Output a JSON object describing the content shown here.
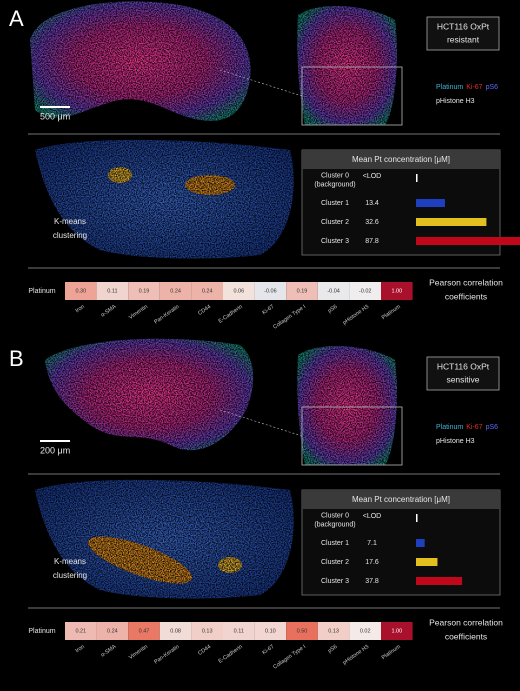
{
  "panels": [
    {
      "letter": "A",
      "scale_bar": "500 μm",
      "sample_box": [
        "HCT116 OxPt",
        "resistant"
      ],
      "legend": [
        {
          "name": "Platinum",
          "color": "#3fb5d8"
        },
        {
          "name": "Ki-67",
          "color": "#e0302a"
        },
        {
          "name": "pS6",
          "color": "#5a6cf5"
        },
        {
          "name": "pHistone H3",
          "color": "#d8c83a"
        }
      ],
      "kmeans_label": [
        "K-means",
        "clustering"
      ],
      "concentration": {
        "title": "Mean Pt concentration [μM]",
        "rows": [
          {
            "cluster": [
              "Cluster 0",
              "(background)"
            ],
            "value_label": "<LOD",
            "color": "#ffffff"
          },
          {
            "cluster": [
              "Cluster 1"
            ],
            "value": 13.4,
            "color": "#1e3fc0"
          },
          {
            "cluster": [
              "Cluster 2"
            ],
            "value": 32.6,
            "color": "#e2c020"
          },
          {
            "cluster": [
              "Cluster 3"
            ],
            "value": 87.8,
            "color": "#c0081a"
          }
        ]
      },
      "correlation": {
        "row_label": "Platinum",
        "caption": [
          "Pearson correlation",
          "coefficients"
        ],
        "columns": [
          "Iron",
          "α-SMA",
          "Vimentin",
          "Pan-Keratin",
          "CD44",
          "E-Cadherin",
          "Ki-67",
          "Collagen Type I",
          "pS6",
          "pHistone H3",
          "Platinum"
        ],
        "values": [
          0.3,
          0.11,
          0.19,
          0.24,
          0.24,
          0.06,
          -0.06,
          0.19,
          -0.04,
          -0.02,
          1
        ],
        "value_labels": [
          "0.30",
          "0.11",
          "0.19",
          "0.24",
          "0.24",
          "0.06",
          "-0.06",
          "0.19",
          "-0.04",
          "-0.02",
          "1.00"
        ]
      }
    },
    {
      "letter": "B",
      "scale_bar": "200 μm",
      "sample_box": [
        "HCT116 OxPt",
        "sensitive"
      ],
      "legend": [
        {
          "name": "Platinum",
          "color": "#3fb5d8"
        },
        {
          "name": "Ki-67",
          "color": "#e0302a"
        },
        {
          "name": "pS6",
          "color": "#5a6cf5"
        },
        {
          "name": "pHistone H3",
          "color": "#d8c83a"
        }
      ],
      "kmeans_label": [
        "K-means",
        "clustering"
      ],
      "concentration": {
        "title": "Mean Pt concentration [μM]",
        "rows": [
          {
            "cluster": [
              "Cluster 0",
              "(background)"
            ],
            "value_label": "<LOD",
            "color": "#ffffff"
          },
          {
            "cluster": [
              "Cluster 1"
            ],
            "value": 7.1,
            "color": "#1e3fc0"
          },
          {
            "cluster": [
              "Cluster 2"
            ],
            "value": 17.6,
            "color": "#e2c020"
          },
          {
            "cluster": [
              "Cluster 3"
            ],
            "value": 37.8,
            "color": "#c0081a"
          }
        ]
      },
      "correlation": {
        "row_label": "Platinum",
        "caption": [
          "Pearson correlation",
          "coefficients"
        ],
        "columns": [
          "Iron",
          "α-SMA",
          "Vimentin",
          "Pan-Keratin",
          "CD44",
          "E-Cadherin",
          "Ki-67",
          "Collagen Type I",
          "pS6",
          "pHistone H3",
          "Platinum"
        ],
        "values": [
          0.21,
          0.24,
          0.47,
          0.08,
          0.13,
          0.11,
          0.1,
          0.5,
          0.13,
          0.02,
          1
        ],
        "value_labels": [
          "0.21",
          "0.24",
          "0.47",
          "0.08",
          "0.13",
          "0.11",
          "0.10",
          "0.50",
          "0.13",
          "0.02",
          "1.00"
        ]
      }
    }
  ]
}
